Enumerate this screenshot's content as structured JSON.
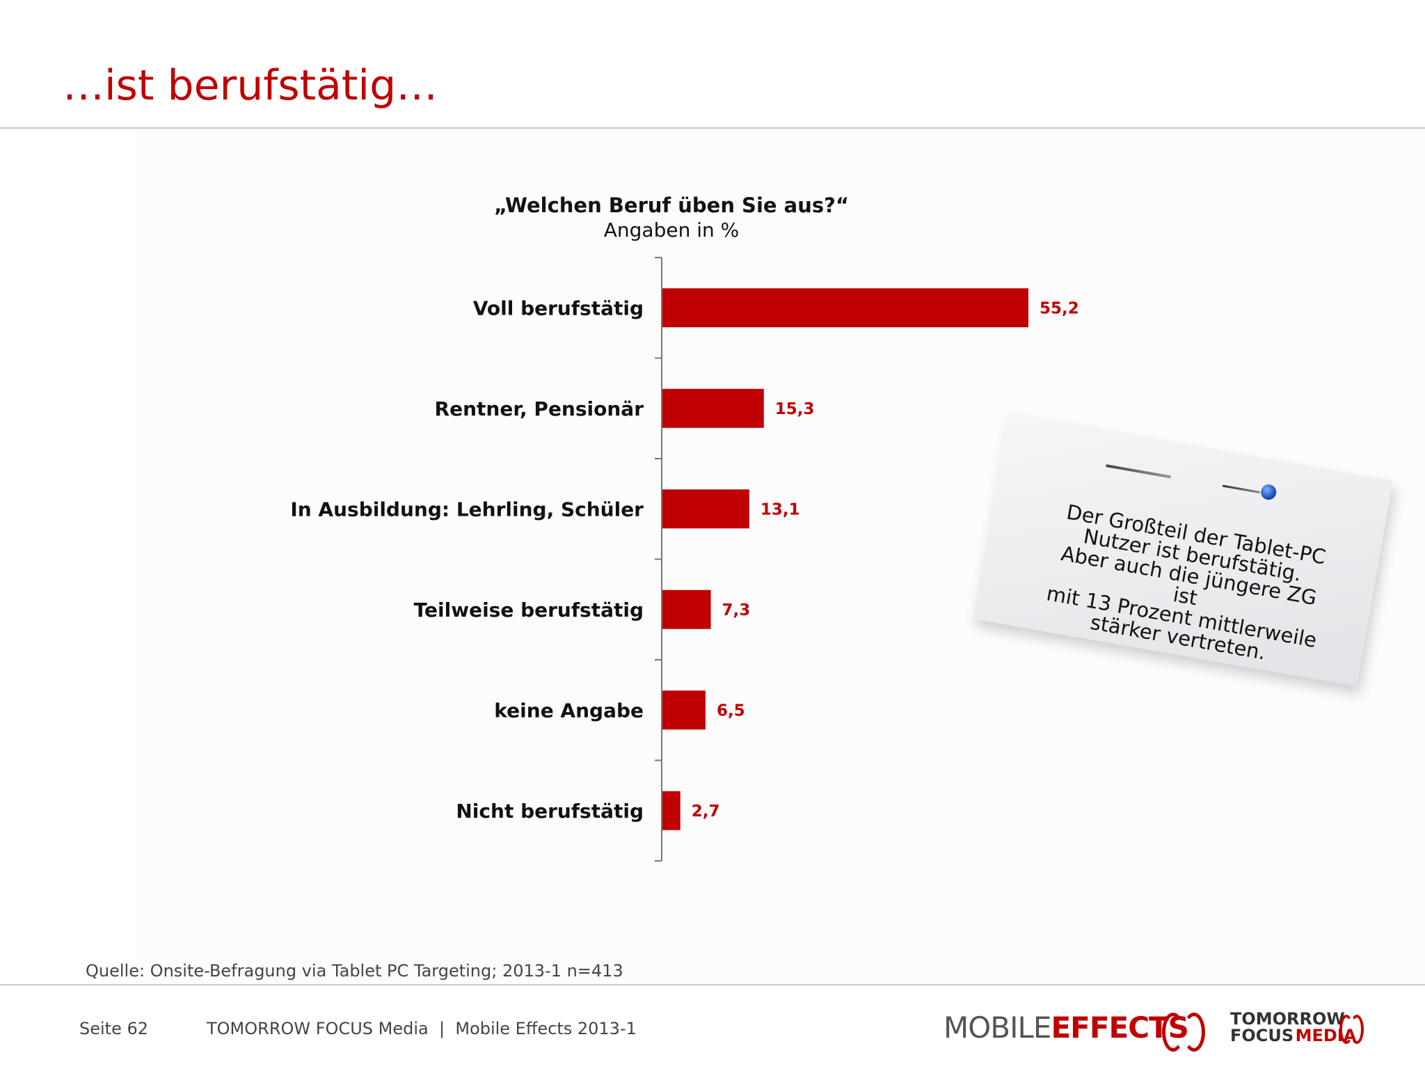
{
  "slide": {
    "title": "…ist berufstätig…"
  },
  "chart_data": {
    "type": "bar",
    "orientation": "horizontal",
    "title": "„Welchen Beruf üben Sie aus?“",
    "subtitle": "Angaben in %",
    "categories": [
      "Voll berufstätig",
      "Rentner, Pensionär",
      "In Ausbildung: Lehrling, Schüler",
      "Teilweise berufstätig",
      "keine Angabe",
      "Nicht berufstätig"
    ],
    "values": [
      55.2,
      15.3,
      13.1,
      7.3,
      6.5,
      2.7
    ],
    "data_labels": [
      "55,2",
      "15,3",
      "13,1",
      "7,3",
      "6,5",
      "2,7"
    ],
    "xlim": [
      0,
      100
    ],
    "bar_color": "#c00000",
    "label_color": "#c00000",
    "grid": false,
    "legend": "none"
  },
  "note": {
    "text_lines": [
      "Der Großteil der Tablet-PC",
      "Nutzer ist berufstätig.",
      "Aber auch die jüngere ZG ist",
      "mit 13 Prozent mittlerweile",
      "stärker vertreten."
    ],
    "pin_icon": "pushpin-icon"
  },
  "source": "Quelle: Onsite-Befragung via Tablet PC Targeting; 2013-1 n=413",
  "footer": {
    "page": "Seite 62",
    "company": "TOMORROW FOCUS Media  |  Mobile Effects 2013-1"
  },
  "logos": {
    "mobile_effects": {
      "part1": "MOBILE",
      "part2": "EFFECTS"
    },
    "tomorrow_focus": {
      "line1": "TOMORROW",
      "line2a": "FOCUS",
      "line2b": "MEDIA"
    }
  },
  "colors": {
    "accent": "#c00000",
    "text": "#111111",
    "muted": "#444444"
  }
}
